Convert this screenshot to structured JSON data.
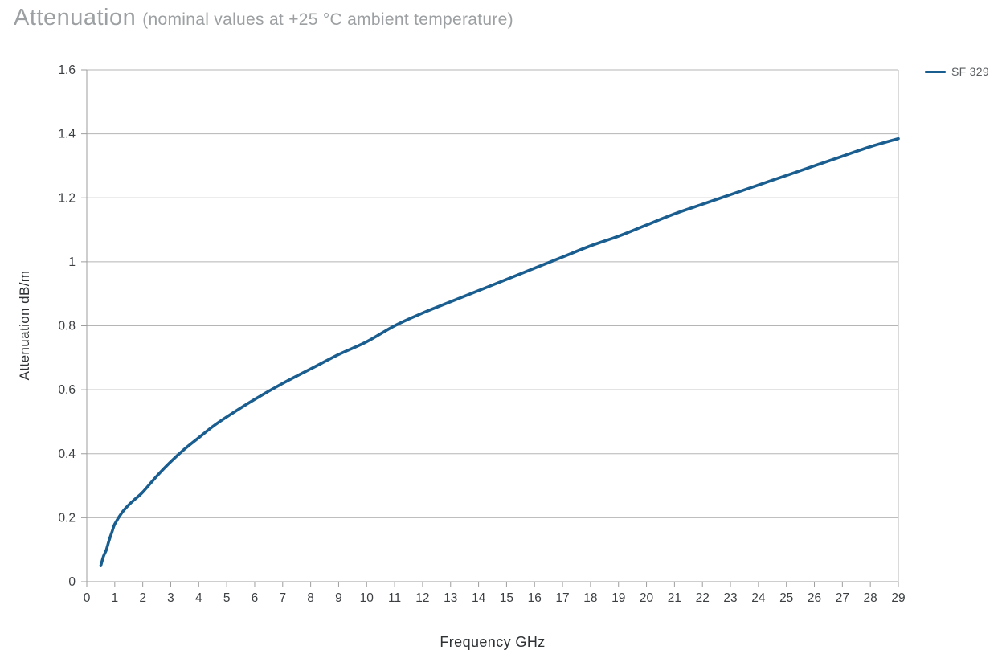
{
  "title": {
    "main": "Attenuation",
    "subtitle": "(nominal values at +25 °C ambient temperature)"
  },
  "legend": [
    {
      "label": "SF 329",
      "color": "#1a5d8f"
    }
  ],
  "colors": {
    "line": "#1a5d8f",
    "grid": "#b5b5b5",
    "axis": "#9e9e9e",
    "tick_label": "#3b3f42",
    "axis_title": "#2e3235",
    "title": "#9ca0a2"
  },
  "chart_data": {
    "type": "line",
    "title": "Attenuation (nominal values at +25 °C ambient temperature)",
    "xlabel": "Frequency GHz",
    "ylabel": "Attenuation dB/m",
    "xlim": [
      0,
      29
    ],
    "ylim": [
      0,
      1.6
    ],
    "grid": "horizontal",
    "legend_position": "top-right",
    "x_ticks": [
      0,
      1,
      2,
      3,
      4,
      5,
      6,
      7,
      8,
      9,
      10,
      11,
      12,
      13,
      14,
      15,
      16,
      17,
      18,
      19,
      20,
      21,
      22,
      23,
      24,
      25,
      26,
      27,
      28,
      29
    ],
    "x_tick_labels": [
      "0",
      "1",
      "2",
      "3",
      "4",
      "5",
      "6",
      "7",
      "8",
      "9",
      "10",
      "11",
      "12",
      "13",
      "14",
      "15",
      "16",
      "17",
      "18",
      "19",
      "20",
      "21",
      "22",
      "23",
      "24",
      "25",
      "26",
      "27",
      "28",
      "29"
    ],
    "y_ticks": [
      0,
      0.2,
      0.4,
      0.6,
      0.8,
      1.0,
      1.2,
      1.4,
      1.6
    ],
    "y_tick_labels": [
      "0",
      "0.2",
      "0.4",
      "0.6",
      "0.8",
      "1",
      "1.2",
      "1.4",
      "1.6"
    ],
    "series": [
      {
        "name": "SF 329",
        "color": "#1a5d8f",
        "x": [
          0.5,
          0.6,
          0.7,
          0.8,
          0.9,
          1,
          1.25,
          1.5,
          1.75,
          2,
          2.5,
          3,
          3.5,
          4,
          4.5,
          5,
          6,
          7,
          8,
          9,
          10,
          11,
          12,
          13,
          14,
          15,
          16,
          17,
          18,
          19,
          20,
          21,
          22,
          23,
          24,
          25,
          26,
          27,
          28,
          29
        ],
        "y": [
          0.05,
          0.08,
          0.1,
          0.13,
          0.155,
          0.18,
          0.215,
          0.24,
          0.26,
          0.28,
          0.33,
          0.375,
          0.415,
          0.45,
          0.485,
          0.515,
          0.57,
          0.62,
          0.665,
          0.71,
          0.75,
          0.8,
          0.84,
          0.875,
          0.91,
          0.945,
          0.98,
          1.015,
          1.05,
          1.08,
          1.115,
          1.15,
          1.18,
          1.21,
          1.24,
          1.27,
          1.3,
          1.33,
          1.36,
          1.385
        ]
      }
    ]
  }
}
